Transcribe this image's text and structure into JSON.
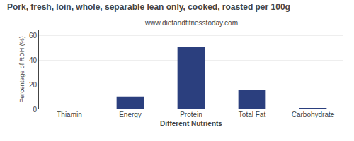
{
  "chart_data": {
    "type": "bar",
    "title": "Pork, fresh, loin, whole, separable lean only, cooked, roasted per 100g",
    "subtitle": "www.dietandfitnesstoday.com",
    "xlabel": "Different Nutrients",
    "ylabel": "Percentage of RDH (%)",
    "categories": [
      "Thiamin",
      "Energy",
      "Protein",
      "Total Fat",
      "Carbohydrate"
    ],
    "values": [
      0.5,
      10.5,
      51,
      15.5,
      1.0
    ],
    "color": "#2b3f7e",
    "ylim": [
      0,
      65
    ],
    "yticks": [
      0,
      20,
      40,
      60
    ],
    "grid": true
  }
}
